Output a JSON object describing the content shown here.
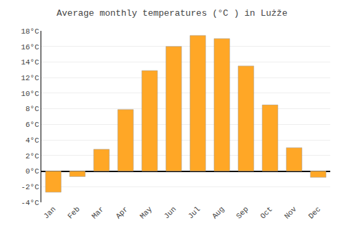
{
  "chart_data": {
    "type": "bar",
    "title": "Average monthly temperatures (°C ) in Lużže",
    "categories": [
      "Jan",
      "Feb",
      "Mar",
      "Apr",
      "May",
      "Jun",
      "Jul",
      "Aug",
      "Sep",
      "Oct",
      "Nov",
      "Dec"
    ],
    "values": [
      -2.7,
      -0.7,
      2.8,
      7.9,
      12.9,
      16.0,
      17.4,
      17.0,
      13.5,
      8.5,
      3.0,
      -0.8
    ],
    "color": "#FFA726",
    "ylim": [
      -4,
      18
    ],
    "yticks": [
      {
        "value": -4,
        "label": "-4°C"
      },
      {
        "value": -2,
        "label": "-2°C"
      },
      {
        "value": 0,
        "label": "0°C"
      },
      {
        "value": 2,
        "label": "2°C"
      },
      {
        "value": 4,
        "label": "4°C"
      },
      {
        "value": 6,
        "label": "6°C"
      },
      {
        "value": 8,
        "label": "8°C"
      },
      {
        "value": 10,
        "label": "10°C"
      },
      {
        "value": 12,
        "label": "12°C"
      },
      {
        "value": 14,
        "label": "14°C"
      },
      {
        "value": 16,
        "label": "16°C"
      },
      {
        "value": 18,
        "label": "18°C"
      }
    ],
    "grid": true
  }
}
